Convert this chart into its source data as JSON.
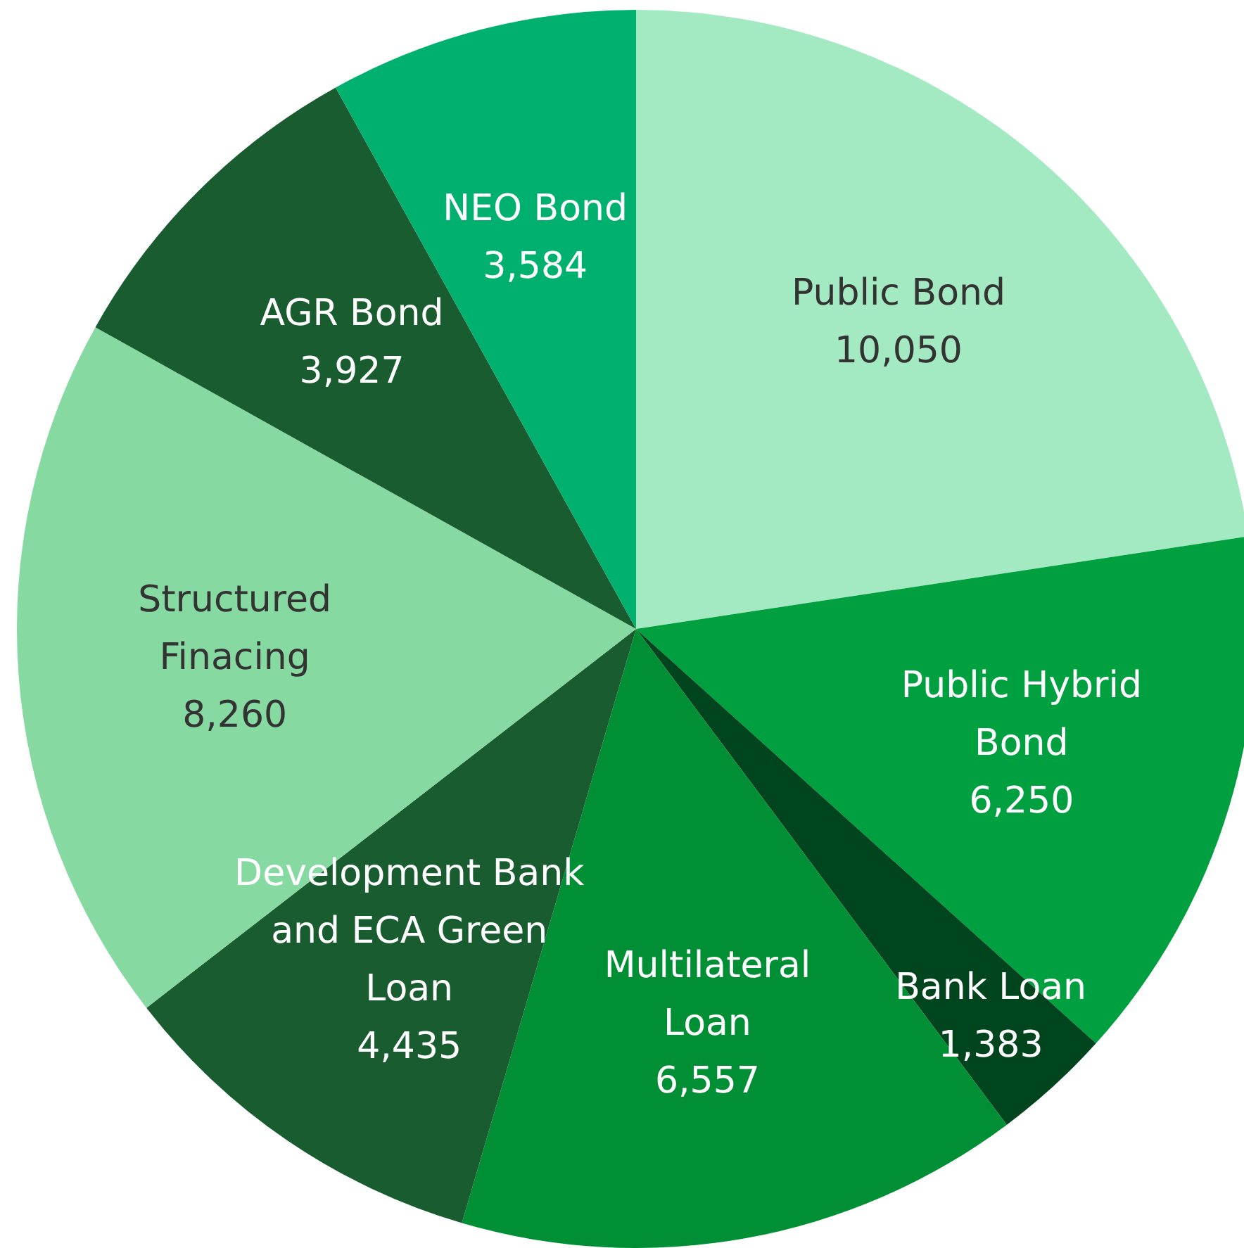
{
  "chart_data": {
    "type": "pie",
    "categories": [
      "Public Bond",
      "Public Hybrid Bond",
      "Bank Loan",
      "Multilateral Loan",
      "Development Bank and ECA Green Loan",
      "Structured Finacing",
      "AGR Bond",
      "NEO Bond"
    ],
    "values": [
      10050,
      6250,
      1383,
      6557,
      4435,
      8260,
      3927,
      3584
    ],
    "colors": [
      "#a3eac2",
      "#00a040",
      "#00451e",
      "#008f35",
      "#185c30",
      "#86d9a0",
      "#185c30",
      "#00b06e"
    ],
    "value_labels": [
      "10,050",
      "6,250",
      "1,383",
      "6,557",
      "4,435",
      "8,260",
      "3,927",
      "3,584"
    ]
  }
}
